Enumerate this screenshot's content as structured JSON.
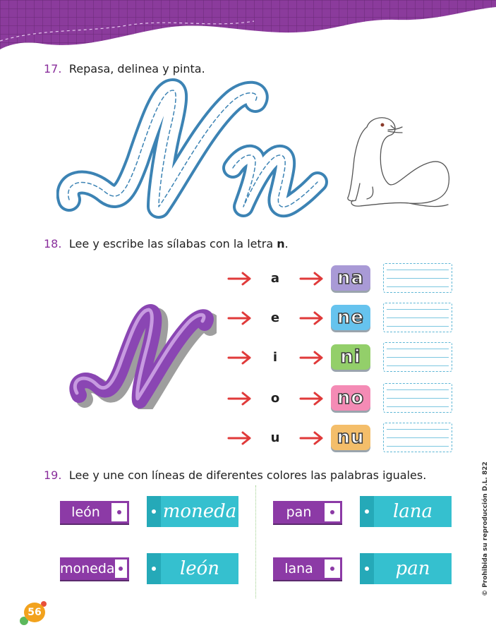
{
  "q17": {
    "number": "17.",
    "text": "Repasa, delinea y pinta."
  },
  "q18": {
    "number": "18.",
    "text_before": "Lee y escribe las sílabas con la letra ",
    "text_bold": "n",
    "text_after": "."
  },
  "q19": {
    "number": "19.",
    "text": "Lee y une con líneas de diferentes colores las palabras iguales."
  },
  "syllables": [
    {
      "vowel": "a",
      "syllable": "na",
      "color": "#a99ad6"
    },
    {
      "vowel": "e",
      "syllable": "ne",
      "color": "#66c3ee"
    },
    {
      "vowel": "i",
      "syllable": "ni",
      "color": "#93cf6a"
    },
    {
      "vowel": "o",
      "syllable": "no",
      "color": "#f48bb5"
    },
    {
      "vowel": "u",
      "syllable": "nu",
      "color": "#f4be6a"
    }
  ],
  "matching": {
    "left": [
      {
        "print": "león",
        "cursive": "moneda"
      },
      {
        "print": "moneda",
        "cursive": "león"
      }
    ],
    "right": [
      {
        "print": "pan",
        "cursive": "lana"
      },
      {
        "print": "lana",
        "cursive": "pan"
      }
    ]
  },
  "side_text": "© Prohibida su reproducción D.L. 822",
  "page_number": "56",
  "colors": {
    "accent_purple": "#8c3aa6",
    "teal": "#35c0cf",
    "arrow_red": "#e03a3a",
    "trace_blue": "#4a9cc7"
  }
}
